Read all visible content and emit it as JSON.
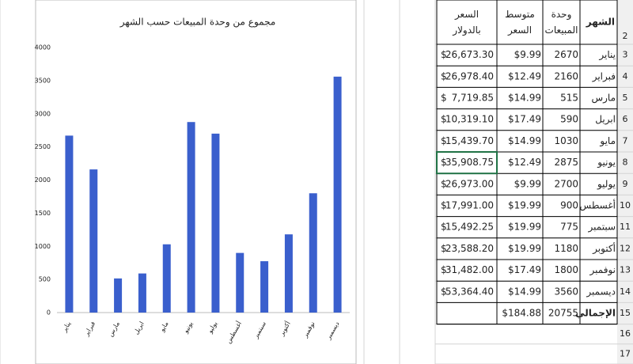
{
  "chart_data": {
    "type": "bar",
    "title": "مجموع من وحدة المبيعات حسب الشهر",
    "categories": [
      "يناير",
      "فبراير",
      "مارس",
      "ابريل",
      "مايو",
      "يونيو",
      "يوليو",
      "أغسطس",
      "سبتمبر",
      "أكتوبر",
      "نوفمبر",
      "ديسمبر"
    ],
    "values": [
      2670,
      2160,
      515,
      590,
      1030,
      2875,
      2700,
      900,
      775,
      1180,
      1800,
      3560
    ],
    "color": "#3a5fcd",
    "ylim": [
      0,
      4000
    ],
    "yticks": [
      0,
      500,
      1000,
      1500,
      2000,
      2500,
      3000,
      3500,
      4000
    ],
    "grid": false
  },
  "table": {
    "row_numbers": [
      2,
      3,
      4,
      5,
      6,
      7,
      8,
      9,
      10,
      11,
      12,
      13,
      14,
      15,
      16,
      17
    ],
    "header": [
      "الشهر",
      "وحدة المبيعات",
      "متوسط السعر",
      "السعر بالدولار"
    ],
    "rows": [
      [
        "يناير",
        2670,
        "$9.99",
        "$",
        "26,673.30"
      ],
      [
        "فبراير",
        2160,
        "$12.49",
        "$",
        "26,978.40"
      ],
      [
        "مارس",
        515,
        "$14.99",
        "$",
        "7,719.85"
      ],
      [
        "ابريل",
        590,
        "$17.49",
        "$",
        "10,319.10"
      ],
      [
        "مايو",
        1030,
        "$14.99",
        "$",
        "15,439.70"
      ],
      [
        "يونيو",
        2875,
        "$12.49",
        "$",
        "35,908.75"
      ],
      [
        "يوليو",
        2700,
        "$9.99",
        "$",
        "26,973.00"
      ],
      [
        "أغسطس",
        900,
        "$19.99",
        "$",
        "17,991.00"
      ],
      [
        "سبتمبر",
        775,
        "$19.99",
        "$",
        "15,492.25"
      ],
      [
        "أكتوبر",
        1180,
        "$19.99",
        "$",
        "23,588.20"
      ],
      [
        "نوفمبر",
        1800,
        "$17.49",
        "$",
        "31,482.00"
      ],
      [
        "ديسمبر",
        3560,
        "$14.99",
        "$",
        "53,364.40"
      ]
    ],
    "total": [
      "الإجمالي",
      20755,
      "$184.88"
    ]
  }
}
